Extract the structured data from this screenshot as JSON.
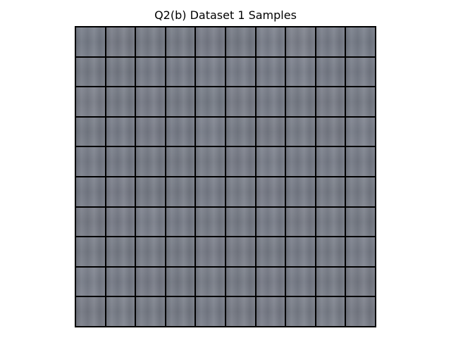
{
  "figure": {
    "title": "Q2(b) Dataset 1 Samples"
  },
  "grid": {
    "rows": 10,
    "columns": 10,
    "border_color": "#000000",
    "tile_colors": [
      "#767c88",
      "#777b86",
      "#767b86",
      "#767b86",
      "#777b87",
      "#757a85",
      "#7a7f8b",
      "#7b7f8a",
      "#777c88",
      "#767c88",
      "#767b86",
      "#757a85",
      "#777c88",
      "#777c88",
      "#797e8a",
      "#787d89",
      "#787d89",
      "#7a7f8b",
      "#767b87",
      "#777c88",
      "#7a7e89",
      "#767b86",
      "#787c88",
      "#767b86",
      "#767c87",
      "#787c87",
      "#787d89",
      "#767b86",
      "#787c87",
      "#777c87",
      "#767b86",
      "#777c88",
      "#777b87",
      "#767b87",
      "#7a7f8b",
      "#767b86",
      "#777b86",
      "#787d88",
      "#777b86",
      "#7a7f8b",
      "#777c88",
      "#767b87",
      "#767b86",
      "#767b86",
      "#787d88",
      "#777b87",
      "#7a7f8b",
      "#777c88",
      "#787d89",
      "#777c88",
      "#767b87",
      "#787c88",
      "#757a85",
      "#767b86",
      "#777c88",
      "#787d88",
      "#787c88",
      "#767b87",
      "#777c87",
      "#777c87",
      "#777b86",
      "#787c88",
      "#7a7f8b",
      "#777c88",
      "#777c87",
      "#767b86",
      "#787d89",
      "#787c87",
      "#787d88",
      "#767b86",
      "#777c87",
      "#767b86",
      "#777c87",
      "#767b86",
      "#787c88",
      "#777b86",
      "#767b86",
      "#777c88",
      "#777c87",
      "#787d89",
      "#7a7f8b",
      "#777c88",
      "#777b87",
      "#757a85",
      "#787d88",
      "#767b86",
      "#787c88",
      "#777c88",
      "#777c87",
      "#777b86",
      "#777b86",
      "#797e89",
      "#777c87",
      "#767b86",
      "#777c88",
      "#777b86",
      "#787c88",
      "#787d88",
      "#797e89",
      "#777b86"
    ]
  }
}
